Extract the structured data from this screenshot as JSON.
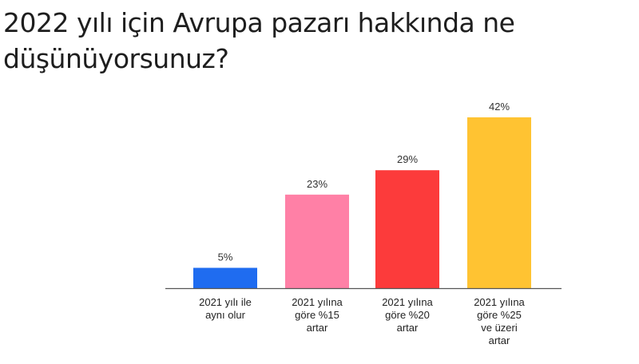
{
  "title_line1": "2022 yılı için Avrupa pazarı hakkında ne",
  "title_line2": "düşünüyorsunuz?",
  "chart_data": {
    "type": "bar",
    "title": "2022 yılı için Avrupa pazarı hakkında ne düşünüyorsunuz?",
    "categories": [
      [
        "2021 yılı ile",
        "aynı olur"
      ],
      [
        "2021 yılına",
        "göre %15",
        "artar"
      ],
      [
        "2021 yılına",
        "göre %20",
        "artar"
      ],
      [
        "2021 yılına",
        "göre %25",
        "ve üzeri",
        "artar"
      ]
    ],
    "values": [
      5,
      23,
      29,
      42
    ],
    "value_labels": [
      "5%",
      "23%",
      "29%",
      "42%"
    ],
    "colors": [
      "#1f6cf0",
      "#ff80a6",
      "#fc3b3b",
      "#ffc332"
    ],
    "ylim": [
      0,
      42
    ],
    "grid": false,
    "legend": "none"
  }
}
